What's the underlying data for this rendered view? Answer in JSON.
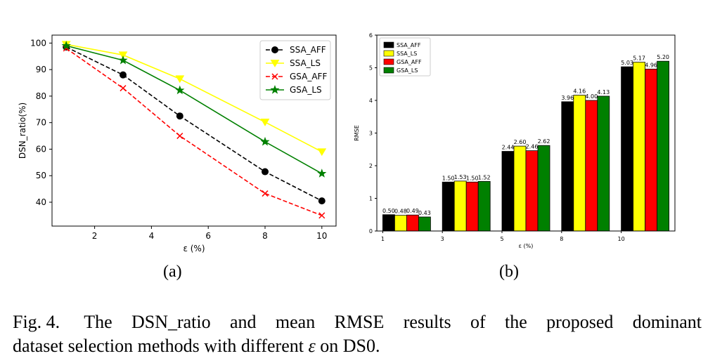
{
  "panels": {
    "a": "(a)",
    "b": "(b)"
  },
  "caption": {
    "prefix": "Fig. 4.",
    "line1": "The DSN_ratio and mean RMSE results of the proposed dominant",
    "line2_start": "dataset selection methods with different",
    "symbol": "ε",
    "line2_end": "on DS0."
  },
  "chart_data": [
    {
      "type": "line",
      "title": "",
      "xlabel": "ε (%)",
      "ylabel": "DSN_ratio(%)",
      "x": [
        1,
        3,
        5,
        8,
        10
      ],
      "xlim": [
        0.5,
        10.5
      ],
      "ylim": [
        31,
        103
      ],
      "xticks": [
        2,
        4,
        6,
        8,
        10
      ],
      "yticks": [
        40,
        50,
        60,
        70,
        80,
        90,
        100
      ],
      "grid": false,
      "legend_position": "top-right",
      "series": [
        {
          "name": "SSA_AFF",
          "values": [
            98.5,
            88,
            72.5,
            51.5,
            40.5
          ],
          "color": "#000000",
          "dash": "dashed",
          "marker": "circle"
        },
        {
          "name": "SSA_LS",
          "values": [
            99.5,
            95.5,
            86.5,
            70.2,
            59
          ],
          "color": "#ffff00",
          "dash": "solid",
          "marker": "triangle-down"
        },
        {
          "name": "GSA_AFF",
          "values": [
            98,
            83,
            65,
            43.3,
            35
          ],
          "color": "#ff0000",
          "dash": "dashed",
          "marker": "x"
        },
        {
          "name": "GSA_LS",
          "values": [
            99,
            93.5,
            82.2,
            62.8,
            50.8
          ],
          "color": "#008000",
          "dash": "solid",
          "marker": "star"
        }
      ]
    },
    {
      "type": "bar",
      "title": "",
      "xlabel": "ε (%)",
      "ylabel": "RMSE",
      "categories": [
        "1",
        "3",
        "5",
        "8",
        "10"
      ],
      "ylim": [
        0,
        6
      ],
      "yticks": [
        0,
        1,
        2,
        3,
        4,
        5,
        6
      ],
      "grid": false,
      "legend_position": "top-left",
      "series": [
        {
          "name": "SSA_AFF",
          "values": [
            0.5,
            1.5,
            2.44,
            3.96,
            5.03
          ],
          "labels": [
            "0.50",
            "1.50",
            "2.44",
            "3.96",
            "5.03"
          ],
          "color": "#000000"
        },
        {
          "name": "SSA_LS",
          "values": [
            0.48,
            1.53,
            2.6,
            4.16,
            5.17
          ],
          "labels": [
            "0.48",
            "1.53",
            "2.60",
            "4.16",
            "5.17"
          ],
          "color": "#ffff00"
        },
        {
          "name": "GSA_AFF",
          "values": [
            0.49,
            1.5,
            2.46,
            4.0,
            4.96
          ],
          "labels": [
            "0.49",
            "1.50",
            "2.46",
            "4.00",
            "4.96"
          ],
          "color": "#ff0000"
        },
        {
          "name": "GSA_LS",
          "values": [
            0.43,
            1.52,
            2.62,
            4.13,
            5.2
          ],
          "labels": [
            "0.43",
            "1.52",
            "2.62",
            "4.13",
            "5.20"
          ],
          "color": "#008000"
        }
      ]
    }
  ]
}
